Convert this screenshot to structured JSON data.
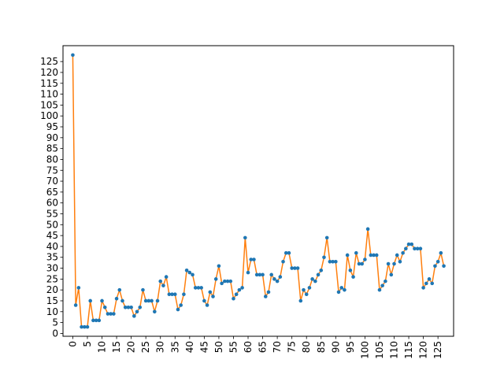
{
  "chart_data": {
    "type": "line",
    "title": "",
    "xlabel": "",
    "ylabel": "",
    "xlim": [
      -3.35,
      130.35
    ],
    "ylim": [
      -1.3,
      132.3
    ],
    "x_ticks": [
      0,
      5,
      10,
      15,
      20,
      25,
      30,
      35,
      40,
      45,
      50,
      55,
      60,
      65,
      70,
      75,
      80,
      85,
      90,
      95,
      100,
      105,
      110,
      115,
      120,
      125
    ],
    "y_ticks": [
      0,
      5,
      10,
      15,
      20,
      25,
      30,
      35,
      40,
      45,
      50,
      55,
      60,
      65,
      70,
      75,
      80,
      85,
      90,
      95,
      100,
      105,
      110,
      115,
      120,
      125
    ],
    "grid": false,
    "legend": "none",
    "series": [
      {
        "line_color": "#ff7f0e",
        "marker_color": "#1f77b4",
        "values": [
          128,
          13,
          21,
          3,
          3,
          3,
          15,
          6,
          6,
          6,
          15,
          12,
          9,
          9,
          9,
          16,
          20,
          15,
          12,
          12,
          12,
          8,
          10,
          12,
          20,
          15,
          15,
          15,
          10,
          15,
          24,
          22,
          26,
          18,
          18,
          18,
          11,
          13,
          18,
          29,
          28,
          27,
          21,
          21,
          21,
          15,
          13,
          19,
          17,
          25,
          31,
          23,
          24,
          24,
          24,
          16,
          18,
          20,
          21,
          44,
          28,
          34,
          34,
          27,
          27,
          27,
          17,
          19,
          27,
          25,
          24,
          26,
          33,
          37,
          37,
          30,
          30,
          30,
          15,
          20,
          18,
          21,
          25,
          24,
          27,
          29,
          35,
          44,
          33,
          33,
          33,
          19,
          21,
          20,
          36,
          29,
          26,
          37,
          32,
          32,
          34,
          48,
          36,
          36,
          36,
          20,
          22,
          24,
          32,
          27,
          32,
          36,
          33,
          37,
          39,
          41,
          41,
          39,
          39,
          39,
          21,
          23,
          25,
          23,
          31,
          33,
          37,
          31
        ]
      }
    ]
  }
}
